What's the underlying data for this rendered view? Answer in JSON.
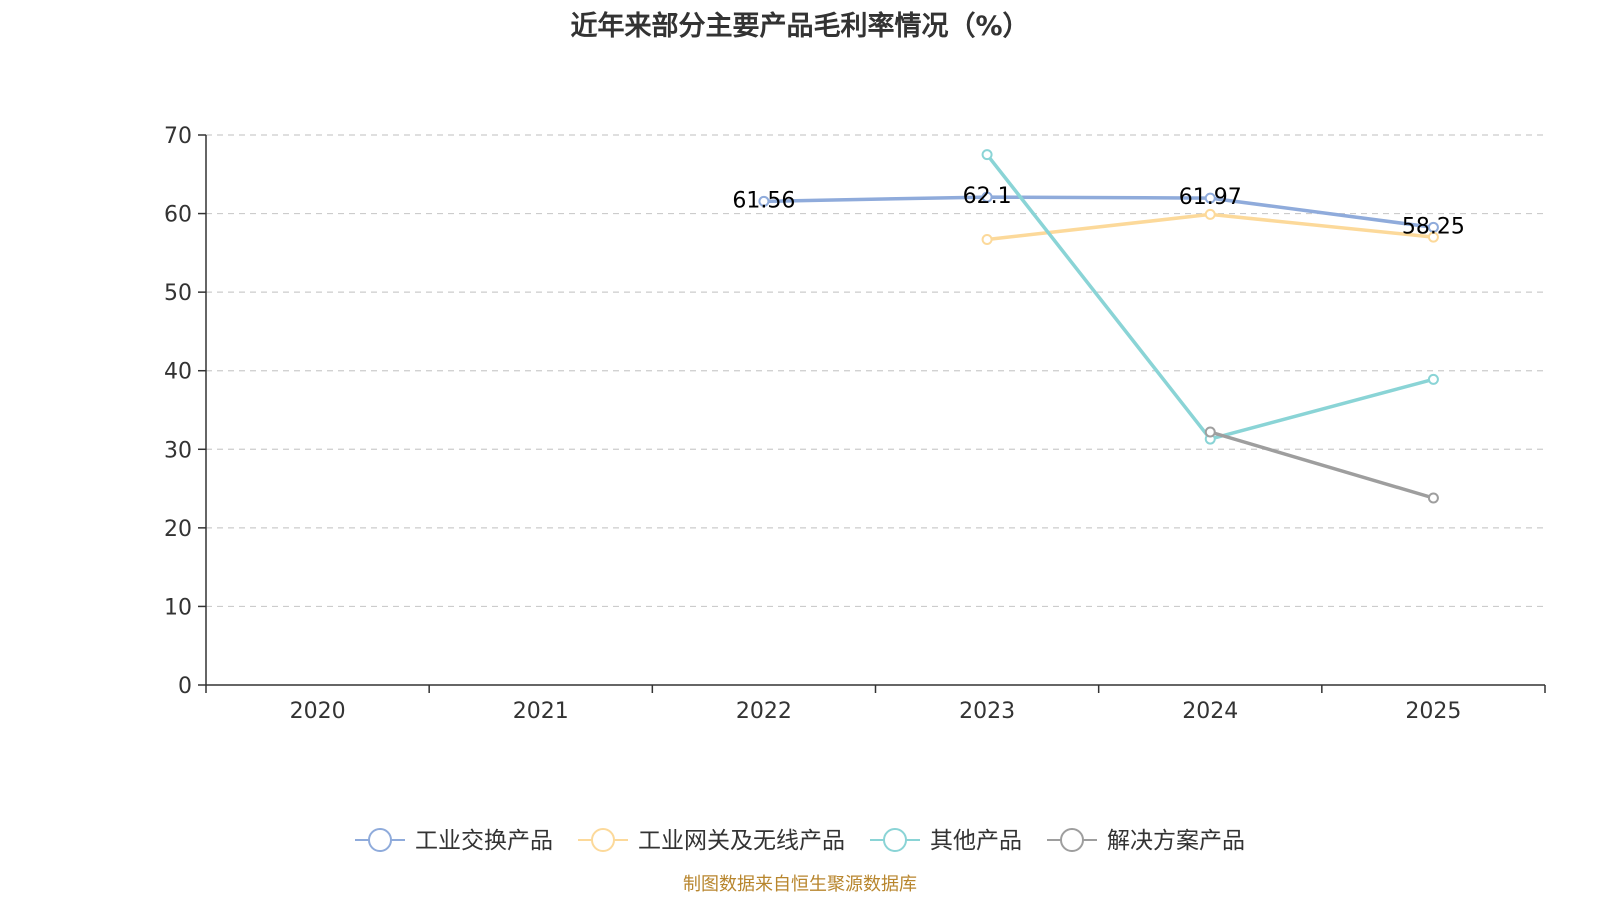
{
  "chart_data": {
    "type": "line",
    "title": "近年来部分主要产品毛利率情况（%）",
    "xlabel": "",
    "ylabel": "",
    "categories": [
      "2020",
      "2021",
      "2022",
      "2023",
      "2024",
      "2025"
    ],
    "ylim": [
      0,
      70
    ],
    "yticks": [
      0,
      10,
      20,
      30,
      40,
      50,
      60,
      70
    ],
    "grid": true,
    "legend_position": "bottom",
    "series": [
      {
        "name": "工业交换产品",
        "color": "#8fabdb",
        "values": [
          null,
          null,
          61.56,
          62.1,
          61.97,
          58.25
        ],
        "labels": [
          "",
          "",
          "61.56",
          "62.1",
          "61.97",
          "58.25"
        ]
      },
      {
        "name": "工业网关及无线产品",
        "color": "#fcd99a",
        "values": [
          null,
          null,
          null,
          56.7,
          59.9,
          57.0
        ]
      },
      {
        "name": "其他产品",
        "color": "#8ad4d6",
        "values": [
          null,
          null,
          null,
          67.5,
          31.3,
          38.9
        ]
      },
      {
        "name": "解决方案产品",
        "color": "#9e9e9e",
        "values": [
          null,
          null,
          null,
          null,
          32.2,
          23.8
        ]
      }
    ]
  },
  "footer": {
    "source": "制图数据来自恒生聚源数据库"
  }
}
